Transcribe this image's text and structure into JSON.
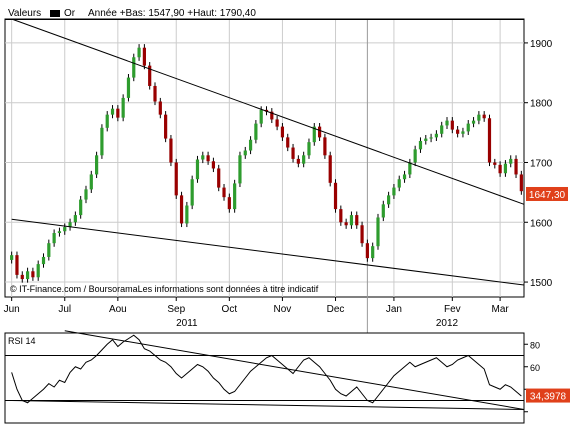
{
  "legend": {
    "instrument_label": "Valeurs",
    "series_label": "Or",
    "stats_text": "Année +Bas: 1547,90 +Haut: 1790,40"
  },
  "credit": "© IT-Finance.com / BoursoramaLes informations sont données à titre indicatif",
  "colors": {
    "up": "#2e9c2e",
    "down": "#990000",
    "line": "#000000",
    "grid": "#cccccc",
    "last_price_bg": "#e0401a",
    "last_price_text": "#ffffff"
  },
  "chart_data": [
    {
      "type": "candlestick",
      "ylim": [
        1475,
        1940
      ],
      "yticks": [
        1500,
        1600,
        1700,
        1800,
        1900
      ],
      "ytick_labels": [
        "1500",
        "1600",
        "1700",
        "1800",
        "1900"
      ],
      "x_months": [
        "Jun",
        "Jul",
        "Aou",
        "Sep",
        "Oct",
        "Nov",
        "Dec",
        "Jan",
        "Fev",
        "Mar"
      ],
      "x_years": [
        "2011",
        "2012"
      ],
      "last_price": 1647.3,
      "last_price_label": "1647,30",
      "grid": true,
      "closes_approx": [
        1545,
        1512,
        1505,
        1518,
        1508,
        1530,
        1542,
        1565,
        1582,
        1585,
        1592,
        1600,
        1612,
        1638,
        1655,
        1680,
        1712,
        1758,
        1780,
        1790,
        1775,
        1808,
        1842,
        1876,
        1892,
        1862,
        1828,
        1802,
        1780,
        1740,
        1700,
        1645,
        1598,
        1628,
        1672,
        1705,
        1712,
        1702,
        1690,
        1658,
        1642,
        1622,
        1665,
        1712,
        1720,
        1738,
        1765,
        1788,
        1785,
        1772,
        1760,
        1742,
        1725,
        1706,
        1698,
        1712,
        1734,
        1760,
        1742,
        1712,
        1666,
        1622,
        1600,
        1595,
        1612,
        1595,
        1565,
        1540,
        1560,
        1608,
        1630,
        1645,
        1658,
        1672,
        1680,
        1700,
        1722,
        1736,
        1740,
        1742,
        1748,
        1762,
        1770,
        1755,
        1748,
        1752,
        1765,
        1770,
        1780,
        1774,
        1700,
        1696,
        1682,
        1698,
        1706,
        1680,
        1652
      ],
      "trendlines": [
        {
          "from": [
            0,
            1940
          ],
          "to": [
            101,
            1630
          ]
        },
        {
          "from": [
            0,
            1605
          ],
          "to": [
            101,
            1495
          ]
        }
      ]
    },
    {
      "type": "line",
      "title": "RSI 14",
      "ylim": [
        10,
        90
      ],
      "yticks": [
        20,
        40,
        60,
        80
      ],
      "ytick_labels": [
        "",
        "",
        "60",
        "80"
      ],
      "hlines": [
        70,
        30
      ],
      "last_value": 34.3978,
      "last_value_label": "34,3978",
      "values_approx": [
        55,
        40,
        30,
        28,
        32,
        36,
        40,
        45,
        42,
        48,
        46,
        55,
        60,
        58,
        64,
        66,
        70,
        75,
        80,
        84,
        78,
        82,
        85,
        88,
        84,
        76,
        74,
        70,
        66,
        64,
        60,
        54,
        50,
        54,
        58,
        62,
        60,
        56,
        50,
        46,
        40,
        36,
        38,
        44,
        50,
        56,
        60,
        64,
        68,
        70,
        66,
        62,
        58,
        54,
        60,
        66,
        68,
        64,
        60,
        54,
        48,
        40,
        36,
        34,
        38,
        42,
        36,
        30,
        28,
        34,
        40,
        46,
        52,
        56,
        60,
        64,
        60,
        62,
        64,
        66,
        68,
        64,
        60,
        62,
        66,
        68,
        70,
        66,
        62,
        58,
        44,
        42,
        40,
        44,
        42,
        38,
        34
      ],
      "trendlines": [
        {
          "from": [
            10,
            92
          ],
          "to": [
            101,
            22
          ]
        },
        {
          "from": [
            0,
            30
          ],
          "to": [
            101,
            22
          ]
        }
      ]
    }
  ]
}
